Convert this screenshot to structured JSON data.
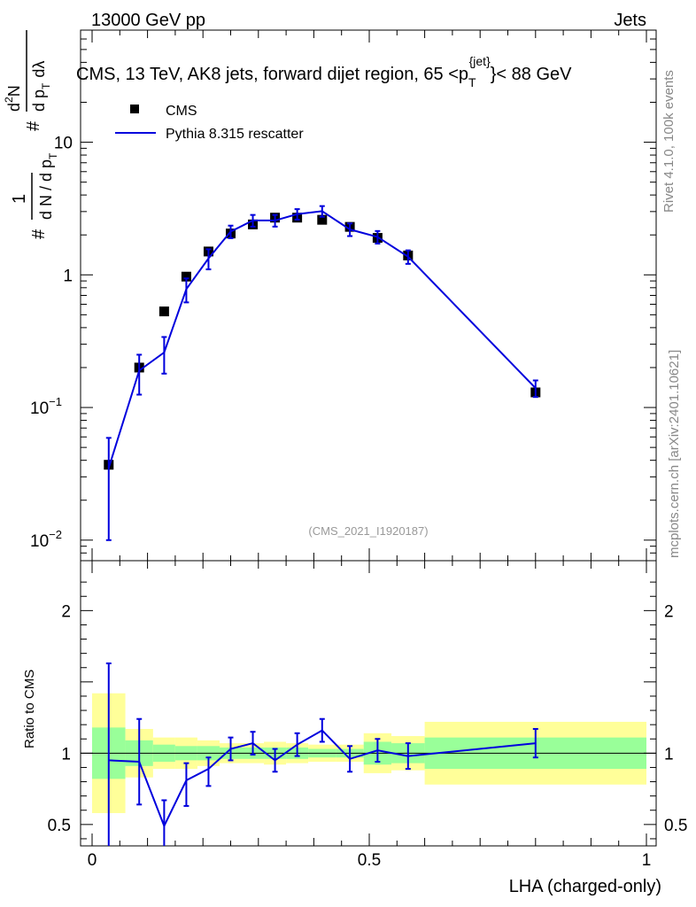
{
  "header": {
    "left": "13000 GeV pp",
    "right": "Jets"
  },
  "title": {
    "main": "CMS, 13 TeV, AK8 jets, forward dijet region, 65 <p",
    "sub": "T",
    "sup": "{jet}",
    "tail": "}< 88 GeV"
  },
  "side": {
    "rivet": "Rivet 4.1.0,  100k events",
    "mcplots": "mcplots.cern.ch [arXiv:2401.10621]"
  },
  "watermark": "(CMS_2021_I1920187)",
  "legend": {
    "data_label": "CMS",
    "mc_label": "Pythia 8.315 rescatter"
  },
  "ylabel_main": {
    "hash": "#",
    "one": "1",
    "dN": "d N / d p",
    "dN_sub": "T",
    "d2N": "d",
    "d2N_sup": "2",
    "d2N_N": "N",
    "dpT": "d p",
    "dpT_sub": "T",
    "dl": "dλ"
  },
  "ylabel_ratio": "Ratio to CMS",
  "xlabel": "LHA (charged-only)",
  "colors": {
    "mc": "#0000dd",
    "band_outer": "#ffff99",
    "band_inner": "#99ff99",
    "data": "#000000"
  },
  "chart_data": {
    "type": "line",
    "main": {
      "yscale": "log",
      "ylim": [
        0.007,
        70
      ],
      "xlim": [
        -0.02,
        1.02
      ],
      "yticks": [
        {
          "value": 0.01,
          "base": "10",
          "exp": "−2"
        },
        {
          "value": 0.1,
          "base": "10",
          "exp": "−1"
        },
        {
          "value": 1,
          "base": "1",
          "exp": ""
        },
        {
          "value": 10,
          "base": "10",
          "exp": ""
        }
      ],
      "data": {
        "name": "CMS",
        "x": [
          0.03,
          0.085,
          0.13,
          0.17,
          0.21,
          0.25,
          0.29,
          0.33,
          0.37,
          0.415,
          0.465,
          0.515,
          0.57,
          0.8
        ],
        "y": [
          0.037,
          0.2,
          0.53,
          0.97,
          1.5,
          2.05,
          2.4,
          2.7,
          2.7,
          2.6,
          2.3,
          1.9,
          1.4,
          0.13
        ]
      },
      "mc": {
        "name": "Pythia 8.315 rescatter",
        "x": [
          0.03,
          0.085,
          0.13,
          0.17,
          0.21,
          0.25,
          0.29,
          0.33,
          0.37,
          0.415,
          0.465,
          0.515,
          0.57,
          0.8
        ],
        "y": [
          0.035,
          0.19,
          0.26,
          0.78,
          1.33,
          2.12,
          2.57,
          2.57,
          2.87,
          3.02,
          2.2,
          1.93,
          1.37,
          0.14
        ],
        "err_lo": [
          0.025,
          0.065,
          0.08,
          0.16,
          0.23,
          0.23,
          0.26,
          0.26,
          0.26,
          0.28,
          0.24,
          0.21,
          0.16,
          0.02
        ],
        "err_hi": [
          0.024,
          0.06,
          0.08,
          0.16,
          0.23,
          0.23,
          0.26,
          0.26,
          0.26,
          0.28,
          0.24,
          0.21,
          0.16,
          0.02
        ]
      }
    },
    "ratio": {
      "ylim": [
        0.35,
        2.35
      ],
      "yticks": [
        0.5,
        1,
        2
      ],
      "xticks": [
        0,
        0.5,
        1
      ],
      "reference": 1,
      "bands": [
        {
          "x0": 0.0,
          "x1": 0.06,
          "outer": [
            0.58,
            1.42
          ],
          "inner": [
            0.82,
            1.18
          ]
        },
        {
          "x0": 0.06,
          "x1": 0.11,
          "outer": [
            0.83,
            1.17
          ],
          "inner": [
            0.91,
            1.09
          ]
        },
        {
          "x0": 0.11,
          "x1": 0.15,
          "outer": [
            0.89,
            1.11
          ],
          "inner": [
            0.94,
            1.06
          ]
        },
        {
          "x0": 0.15,
          "x1": 0.19,
          "outer": [
            0.89,
            1.11
          ],
          "inner": [
            0.95,
            1.05
          ]
        },
        {
          "x0": 0.19,
          "x1": 0.23,
          "outer": [
            0.91,
            1.09
          ],
          "inner": [
            0.95,
            1.05
          ]
        },
        {
          "x0": 0.23,
          "x1": 0.27,
          "outer": [
            0.93,
            1.07
          ],
          "inner": [
            0.96,
            1.04
          ]
        },
        {
          "x0": 0.27,
          "x1": 0.31,
          "outer": [
            0.93,
            1.07
          ],
          "inner": [
            0.96,
            1.04
          ]
        },
        {
          "x0": 0.31,
          "x1": 0.35,
          "outer": [
            0.92,
            1.08
          ],
          "inner": [
            0.96,
            1.04
          ]
        },
        {
          "x0": 0.35,
          "x1": 0.39,
          "outer": [
            0.93,
            1.07
          ],
          "inner": [
            0.96,
            1.04
          ]
        },
        {
          "x0": 0.39,
          "x1": 0.44,
          "outer": [
            0.94,
            1.06
          ],
          "inner": [
            0.97,
            1.03
          ]
        },
        {
          "x0": 0.44,
          "x1": 0.49,
          "outer": [
            0.94,
            1.06
          ],
          "inner": [
            0.97,
            1.03
          ]
        },
        {
          "x0": 0.49,
          "x1": 0.54,
          "outer": [
            0.86,
            1.14
          ],
          "inner": [
            0.92,
            1.08
          ]
        },
        {
          "x0": 0.54,
          "x1": 0.6,
          "outer": [
            0.88,
            1.12
          ],
          "inner": [
            0.93,
            1.07
          ]
        },
        {
          "x0": 0.6,
          "x1": 1.0,
          "outer": [
            0.78,
            1.22
          ],
          "inner": [
            0.89,
            1.11
          ]
        }
      ],
      "mc": {
        "x": [
          0.03,
          0.085,
          0.13,
          0.17,
          0.21,
          0.25,
          0.29,
          0.33,
          0.37,
          0.415,
          0.465,
          0.515,
          0.57,
          0.8
        ],
        "y": [
          0.95,
          0.94,
          0.49,
          0.81,
          0.89,
          1.03,
          1.07,
          0.95,
          1.06,
          1.16,
          0.96,
          1.02,
          0.98,
          1.07
        ],
        "err_lo": [
          0.68,
          0.3,
          0.18,
          0.18,
          0.12,
          0.08,
          0.08,
          0.08,
          0.08,
          0.08,
          0.09,
          0.08,
          0.09,
          0.1
        ],
        "err_hi": [
          0.68,
          0.3,
          0.18,
          0.12,
          0.08,
          0.08,
          0.08,
          0.08,
          0.08,
          0.08,
          0.09,
          0.08,
          0.09,
          0.1
        ]
      }
    }
  }
}
